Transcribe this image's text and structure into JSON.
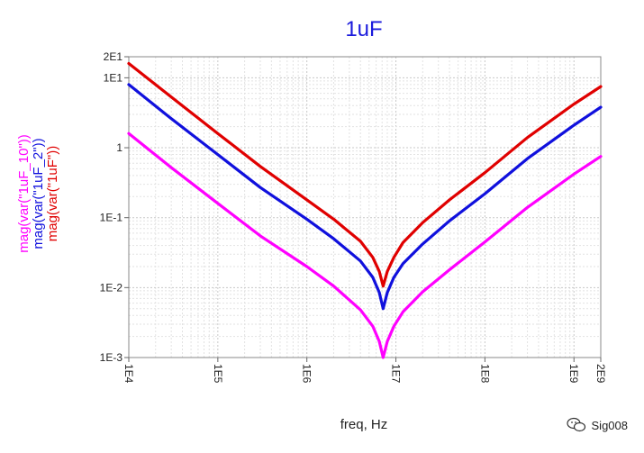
{
  "chart_data": {
    "type": "line",
    "title": "1uF",
    "xlabel": "freq, Hz",
    "x_scale": "log",
    "y_scale": "log",
    "xlim": [
      10000,
      2000000000
    ],
    "ylim": [
      0.001,
      20
    ],
    "x_ticks": [
      {
        "value": 10000,
        "label": "1E4"
      },
      {
        "value": 100000,
        "label": "1E5"
      },
      {
        "value": 1000000,
        "label": "1E6"
      },
      {
        "value": 10000000,
        "label": "1E7"
      },
      {
        "value": 100000000,
        "label": "1E8"
      },
      {
        "value": 1000000000,
        "label": "1E9"
      },
      {
        "value": 2000000000,
        "label": "2E9"
      }
    ],
    "y_ticks": [
      {
        "value": 0.001,
        "label": "1E-3"
      },
      {
        "value": 0.01,
        "label": "1E-2"
      },
      {
        "value": 0.1,
        "label": "1E-1"
      },
      {
        "value": 1,
        "label": "1"
      },
      {
        "value": 10,
        "label": "1E1"
      },
      {
        "value": 20,
        "label": "2E1"
      }
    ],
    "grid": true,
    "series": [
      {
        "name": "mag(var(\"1uF_10\"))",
        "color": "#ff00ff",
        "x": [
          10000,
          30000,
          100000,
          300000,
          1000000,
          2000000,
          4000000,
          5500000,
          6500000,
          7200000,
          8000000,
          9500000,
          12000000,
          20000000,
          40000000,
          100000000,
          300000000,
          1000000000,
          2000000000
        ],
        "y": [
          1.6,
          0.52,
          0.16,
          0.055,
          0.02,
          0.0105,
          0.0048,
          0.0028,
          0.0017,
          0.001,
          0.0017,
          0.0028,
          0.0045,
          0.0087,
          0.018,
          0.045,
          0.14,
          0.42,
          0.75
        ]
      },
      {
        "name": "mag(var(\"1uF_2\"))",
        "color": "#1010dd",
        "x": [
          10000,
          30000,
          100000,
          300000,
          1000000,
          2000000,
          4000000,
          5500000,
          6500000,
          7200000,
          8000000,
          9500000,
          12000000,
          20000000,
          40000000,
          100000000,
          300000000,
          1000000000,
          2000000000
        ],
        "y": [
          8,
          2.6,
          0.8,
          0.27,
          0.095,
          0.05,
          0.024,
          0.014,
          0.0085,
          0.005,
          0.0085,
          0.014,
          0.022,
          0.042,
          0.09,
          0.22,
          0.7,
          2.1,
          3.8
        ]
      },
      {
        "name": "mag(var(\"1uF\"))",
        "color": "#e00000",
        "x": [
          10000,
          30000,
          100000,
          300000,
          1000000,
          2000000,
          4000000,
          5500000,
          6500000,
          7200000,
          8000000,
          9500000,
          12000000,
          20000000,
          40000000,
          100000000,
          300000000,
          1000000000,
          2000000000
        ],
        "y": [
          16,
          5.3,
          1.6,
          0.54,
          0.18,
          0.095,
          0.046,
          0.027,
          0.017,
          0.0105,
          0.017,
          0.027,
          0.044,
          0.085,
          0.18,
          0.44,
          1.4,
          4.2,
          7.5
        ]
      }
    ]
  },
  "watermark": {
    "icon": "wechat-icon",
    "text": "Sig008"
  }
}
